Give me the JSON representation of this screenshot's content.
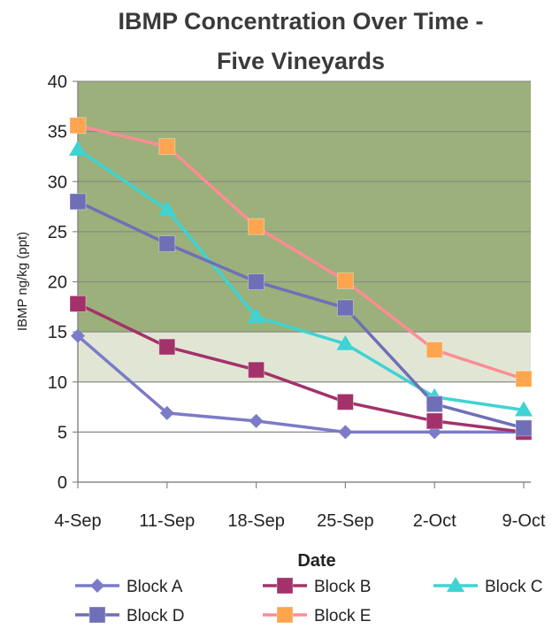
{
  "chart_data": {
    "type": "line",
    "title_lines": [
      "IBMP Concentration Over Time -",
      "Five Vineyards"
    ],
    "xlabel": "Date",
    "ylabel": "IBMP ng/kg (ppt)",
    "categories": [
      "4-Sep",
      "11-Sep",
      "18-Sep",
      "25-Sep",
      "2-Oct",
      "9-Oct"
    ],
    "ylim": [
      0,
      40
    ],
    "yticks": [
      0,
      5,
      10,
      15,
      20,
      25,
      30,
      35,
      40
    ],
    "grid": true,
    "legend_position": "bottom",
    "bands": [
      {
        "from": 15,
        "to": 40,
        "color": "#9bb07a"
      },
      {
        "from": 10,
        "to": 15,
        "color": "#e1e6d4"
      }
    ],
    "series": [
      {
        "name": "Block A",
        "values": [
          14.6,
          6.9,
          6.1,
          5.0,
          5.0,
          5.0
        ],
        "color": "#7b7bc8",
        "marker": "diamond"
      },
      {
        "name": "Block B",
        "values": [
          17.8,
          13.5,
          11.2,
          8.0,
          6.1,
          5.0
        ],
        "color": "#a3326a",
        "marker": "square"
      },
      {
        "name": "Block C",
        "values": [
          33.2,
          27.2,
          16.5,
          13.8,
          8.5,
          7.2
        ],
        "color": "#3fd3d3",
        "marker": "triangle"
      },
      {
        "name": "Block D",
        "values": [
          28.0,
          23.8,
          20.0,
          17.4,
          7.8,
          5.4
        ],
        "color": "#6f6fb8",
        "marker": "square"
      },
      {
        "name": "Block E",
        "values": [
          35.6,
          33.5,
          25.5,
          20.1,
          13.2,
          10.3
        ],
        "color": "#ff8c94",
        "marker": "square",
        "marker_color": "#ffa54f"
      }
    ]
  }
}
